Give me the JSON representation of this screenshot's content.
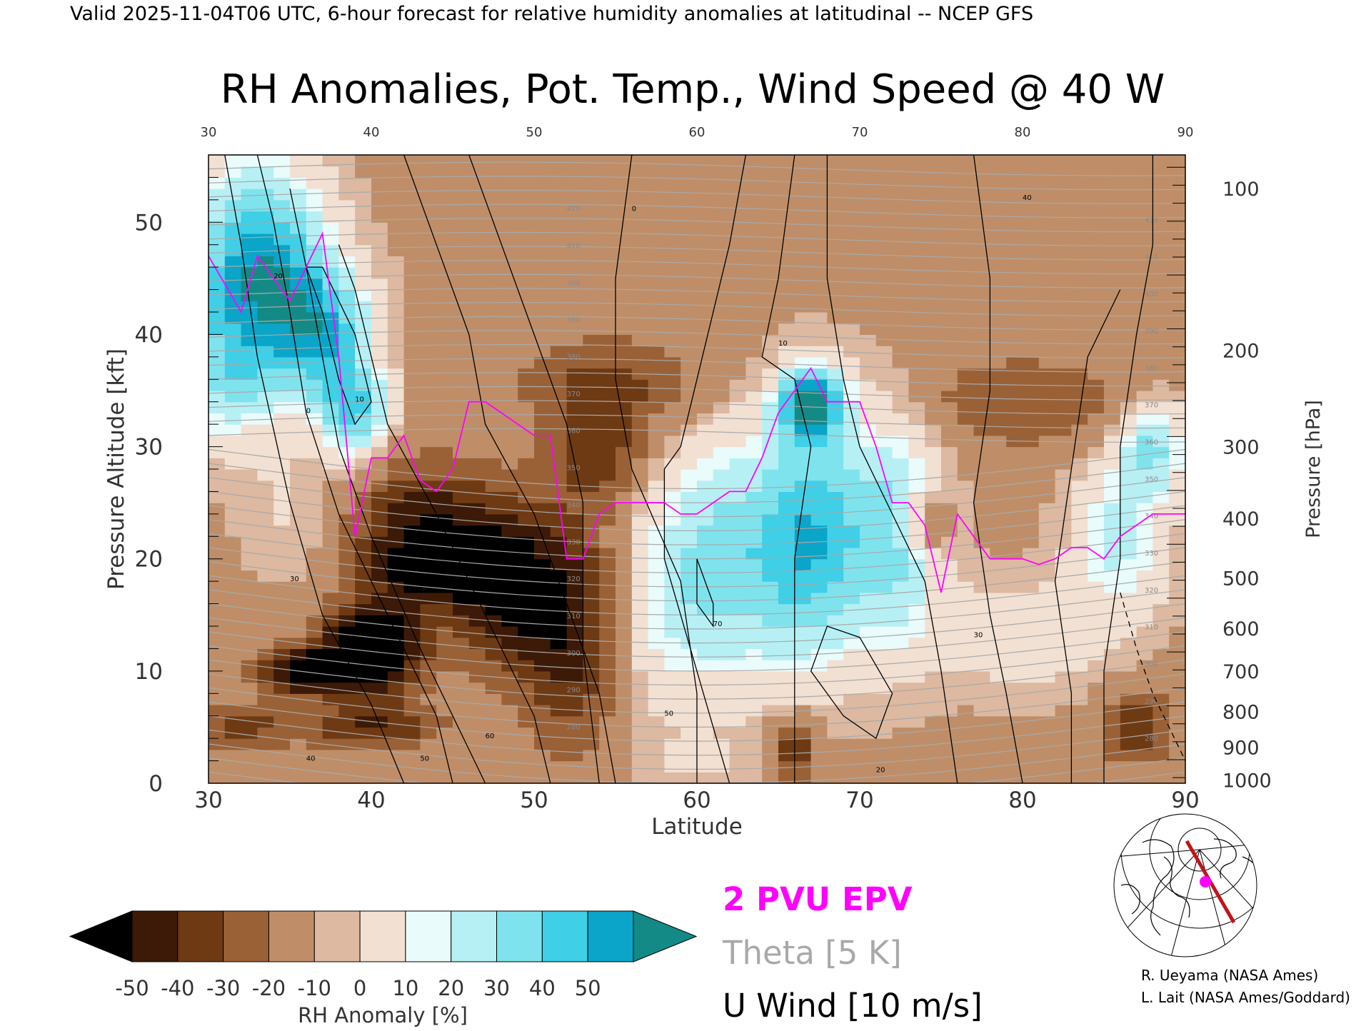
{
  "header": {
    "valid_line": "Valid 2025-11-04T06 UTC, 6-hour forecast for relative humidity anomalies at latitudinal -- NCEP GFS",
    "title": "RH Anomalies, Pot. Temp., Wind Speed @ 40 W"
  },
  "chart_data": {
    "type": "heatmap",
    "title": "RH Anomalies, Pot. Temp., Wind Speed @ 40 W",
    "xlabel": "Latitude",
    "ylabel_left": "Pressure Altitude [kft]",
    "ylabel_right": "Pressure [hPa]",
    "xlim": [
      30,
      90
    ],
    "ylim_kft": [
      0,
      56
    ],
    "x_ticks": [
      "30",
      "40",
      "50",
      "60",
      "70",
      "80",
      "90"
    ],
    "y_ticks_kft": [
      "0",
      "10",
      "20",
      "30",
      "40",
      "50"
    ],
    "y_ticks_kft_values": [
      0,
      10,
      20,
      30,
      40,
      50
    ],
    "pressure_ticks": [
      "100",
      "200",
      "300",
      "400",
      "500",
      "600",
      "700",
      "800",
      "900",
      "1000"
    ],
    "pressure_ticks_kft": [
      53.0,
      38.6,
      30.0,
      23.6,
      18.3,
      13.8,
      10.0,
      6.4,
      3.2,
      0.3
    ],
    "colorbar": {
      "label": "RH Anomaly [%]",
      "tick_labels": [
        "-50",
        "-40",
        "-30",
        "-20",
        "-10",
        "0",
        "10",
        "20",
        "30",
        "40",
        "50"
      ],
      "levels": [
        -50,
        -40,
        -30,
        -20,
        -10,
        -5,
        5,
        10,
        20,
        30,
        40,
        50
      ],
      "colors": [
        "#3d1a07",
        "#6e3a14",
        "#9a6137",
        "#bf8e68",
        "#dcb9a0",
        "#f2e0d2",
        "#e9fbfb",
        "#b6f0f5",
        "#7fe3ee",
        "#3fcfe6",
        "#0aa5c8"
      ],
      "under_color": "#000000",
      "over_color": "#148a86"
    },
    "legend": [
      {
        "label": "2 PVU EPV",
        "color": "#ff00ff"
      },
      {
        "label": "Theta [5 K]",
        "color": "#a9a9a9"
      },
      {
        "label": "U Wind [10 m/s]",
        "color": "#000000"
      }
    ],
    "epv_2pvu_line": {
      "lat": [
        30,
        32,
        33,
        34,
        35,
        36,
        37,
        38,
        39,
        40,
        41,
        42,
        43,
        44,
        45,
        46,
        47,
        48,
        49,
        50,
        51,
        52,
        53,
        54,
        55,
        56,
        57,
        58,
        59,
        60,
        61,
        62,
        63,
        64,
        65,
        66,
        67,
        68,
        69,
        70,
        71,
        72,
        73,
        74,
        75,
        76,
        77,
        78,
        79,
        80,
        81,
        82,
        83,
        84,
        85,
        86,
        87,
        88,
        89,
        90
      ],
      "kft": [
        47,
        42,
        47,
        45,
        43,
        46,
        49,
        38,
        22,
        29,
        29,
        31,
        27,
        26,
        28,
        34,
        34,
        33,
        32,
        31,
        31,
        20,
        20,
        24,
        25,
        25,
        25,
        25,
        24,
        24,
        25,
        26,
        26,
        29,
        33,
        35,
        37,
        34,
        34,
        34,
        30,
        25,
        25,
        23,
        17,
        24,
        22,
        20,
        20,
        20,
        19.5,
        20,
        21,
        21,
        20,
        22,
        23,
        24,
        24,
        24
      ]
    },
    "theta_labels": [
      "420",
      "410",
      "400",
      "390",
      "380",
      "370",
      "360",
      "350",
      "340",
      "330",
      "320",
      "310",
      "300",
      "290",
      "280"
    ],
    "u_wind_labels": [
      "0",
      "10",
      "20",
      "30",
      "40",
      "50",
      "60",
      "70"
    ],
    "grid": false
  },
  "legend_text": {
    "epv": "2 PVU EPV",
    "theta": "Theta [5 K]",
    "uwind": "U Wind [10 m/s]"
  },
  "credits": {
    "line1": "R. Ueyama (NASA Ames)",
    "line2": "L. Lait (NASA Ames/Goddard)"
  },
  "colors": {
    "epv": "#ff00ff",
    "theta": "#a9a9a9",
    "uwind": "#000000",
    "cross_section_path": "#c0141a",
    "location_marker": "#ff00ff"
  },
  "icons": {
    "inset_map": "polar-stereographic-locator-map-icon"
  }
}
